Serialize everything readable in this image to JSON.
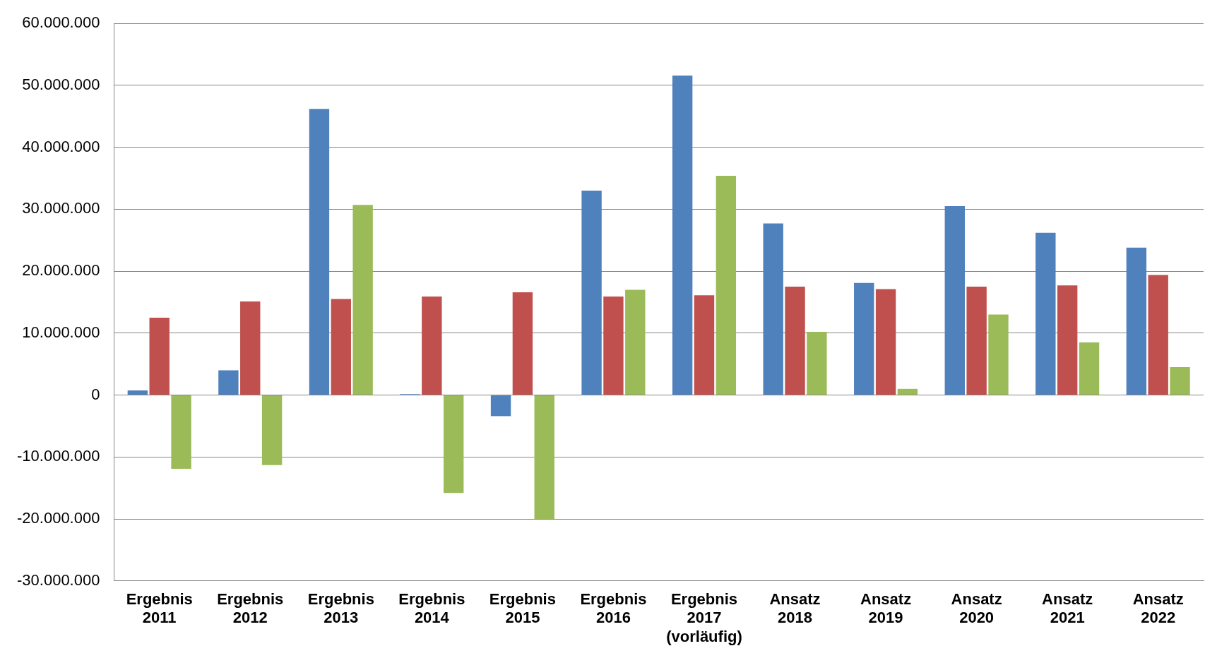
{
  "chart_data": {
    "type": "bar",
    "categories": [
      "Ergebnis\n2011",
      "Ergebnis\n2012",
      "Ergebnis\n2013",
      "Ergebnis\n2014",
      "Ergebnis\n2015",
      "Ergebnis\n2016",
      "Ergebnis\n2017\n(vorläufig)",
      "Ansatz\n2018",
      "Ansatz\n2019",
      "Ansatz\n2020",
      "Ansatz\n2021",
      "Ansatz\n2022"
    ],
    "series": [
      {
        "color": "#4f81bd",
        "values": [
          750000,
          4000000,
          46200000,
          150000,
          -3400000,
          33000000,
          51600000,
          27700000,
          18100000,
          30500000,
          26200000,
          23800000
        ]
      },
      {
        "color": "#c0504d",
        "values": [
          12500000,
          15100000,
          15500000,
          15900000,
          16600000,
          15900000,
          16100000,
          17500000,
          17100000,
          17500000,
          17700000,
          19400000
        ]
      },
      {
        "color": "#9bbb59",
        "values": [
          -11900000,
          -11300000,
          30700000,
          -15800000,
          -20000000,
          17000000,
          35400000,
          10200000,
          1000000,
          13000000,
          8500000,
          4500000
        ]
      }
    ],
    "ylim": [
      -30000000,
      60000000
    ],
    "yticks": [
      {
        "value": -30000000,
        "label": "-30.000.000"
      },
      {
        "value": -20000000,
        "label": "-20.000.000"
      },
      {
        "value": -10000000,
        "label": "-10.000.000"
      },
      {
        "value": 0,
        "label": "0"
      },
      {
        "value": 10000000,
        "label": "10.000.000"
      },
      {
        "value": 20000000,
        "label": "20.000.000"
      },
      {
        "value": 30000000,
        "label": "30.000.000"
      },
      {
        "value": 40000000,
        "label": "40.000.000"
      },
      {
        "value": 50000000,
        "label": "50.000.000"
      },
      {
        "value": 60000000,
        "label": "60.000.000"
      }
    ],
    "grid": "y",
    "legend": false
  }
}
